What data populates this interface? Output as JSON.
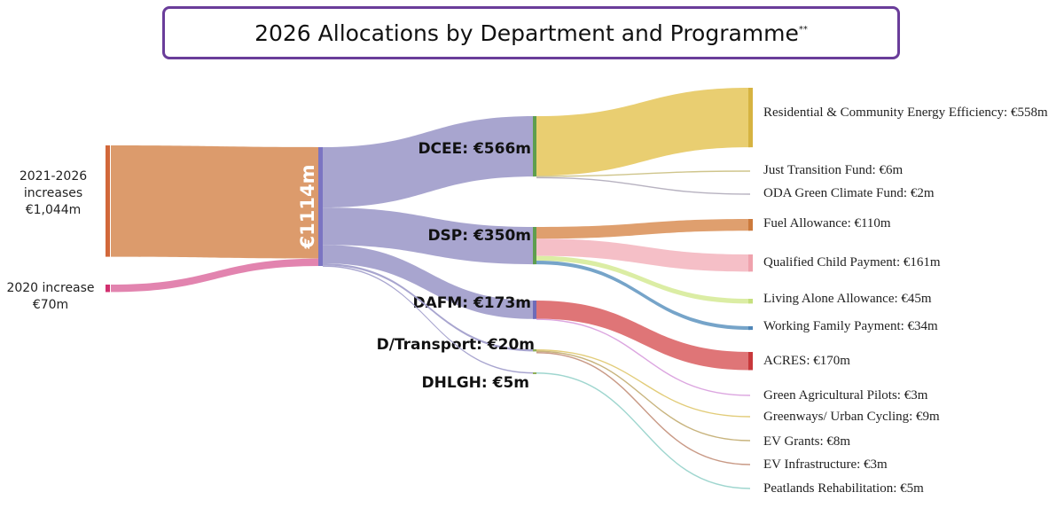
{
  "title": "2026 Allocations by Department and Programme",
  "title_footnote": "**",
  "chart_data": {
    "type": "sankey",
    "title": "2026 Allocations by Department and Programme",
    "unit": "€m",
    "sources": [
      {
        "id": "src-increases",
        "lines": [
          "2021-2026",
          "increases",
          "€1,044m"
        ],
        "value": 1044,
        "color": "#d9925f"
      },
      {
        "id": "src-2020",
        "lines": [
          "2020 increase",
          "€70m"
        ],
        "value": 70,
        "color": "#e07aa8"
      }
    ],
    "total": {
      "label": "€1114m",
      "value": 1114,
      "color": "#a3a0cc"
    },
    "departments": [
      {
        "id": "dcee",
        "label": "DCEE: €566m",
        "value": 566,
        "programmes": [
          {
            "label": "Residential & Community Energy Efficiency: €558m",
            "value": 558,
            "color": "#e8cb69"
          },
          {
            "label": "Just Transition Fund: €6m",
            "value": 6,
            "color": "#cfc58c"
          },
          {
            "label": "ODA Green Climate Fund: €2m",
            "value": 2,
            "color": "#b7b2c0"
          }
        ]
      },
      {
        "id": "dsp",
        "label": "DSP: €350m",
        "value": 350,
        "programmes": [
          {
            "label": "Fuel Allowance: €110m",
            "value": 110,
            "color": "#dd9a66"
          },
          {
            "label": "Qualified Child Payment: €161m",
            "value": 161,
            "color": "#f4bcc4"
          },
          {
            "label": "Living Alone Allowance: €45m",
            "value": 45,
            "color": "#d9ec9f"
          },
          {
            "label": "Working Family Payment: €34m",
            "value": 34,
            "color": "#6f9fc6"
          }
        ]
      },
      {
        "id": "dafm",
        "label": "DAFM: €173m",
        "value": 173,
        "programmes": [
          {
            "label": "ACRES: €170m",
            "value": 170,
            "color": "#dd6e70"
          },
          {
            "label": "Green Agricultural Pilots: €3m",
            "value": 3,
            "color": "#dca6e0"
          }
        ]
      },
      {
        "id": "dtransport",
        "label": "D/Transport: €20m",
        "value": 20,
        "programmes": [
          {
            "label": "Greenways/ Urban Cycling: €9m",
            "value": 9,
            "color": "#e2cc79"
          },
          {
            "label": "EV Grants: €8m",
            "value": 8,
            "color": "#c8b47e"
          },
          {
            "label": "EV Infrastructure: €3m",
            "value": 3,
            "color": "#c99a86"
          }
        ]
      },
      {
        "id": "dhlgh",
        "label": "DHLGH: €5m",
        "value": 5,
        "programmes": [
          {
            "label": "Peatlands Rehabilitation: €5m",
            "value": 5,
            "color": "#9fd6cf"
          }
        ]
      }
    ]
  }
}
